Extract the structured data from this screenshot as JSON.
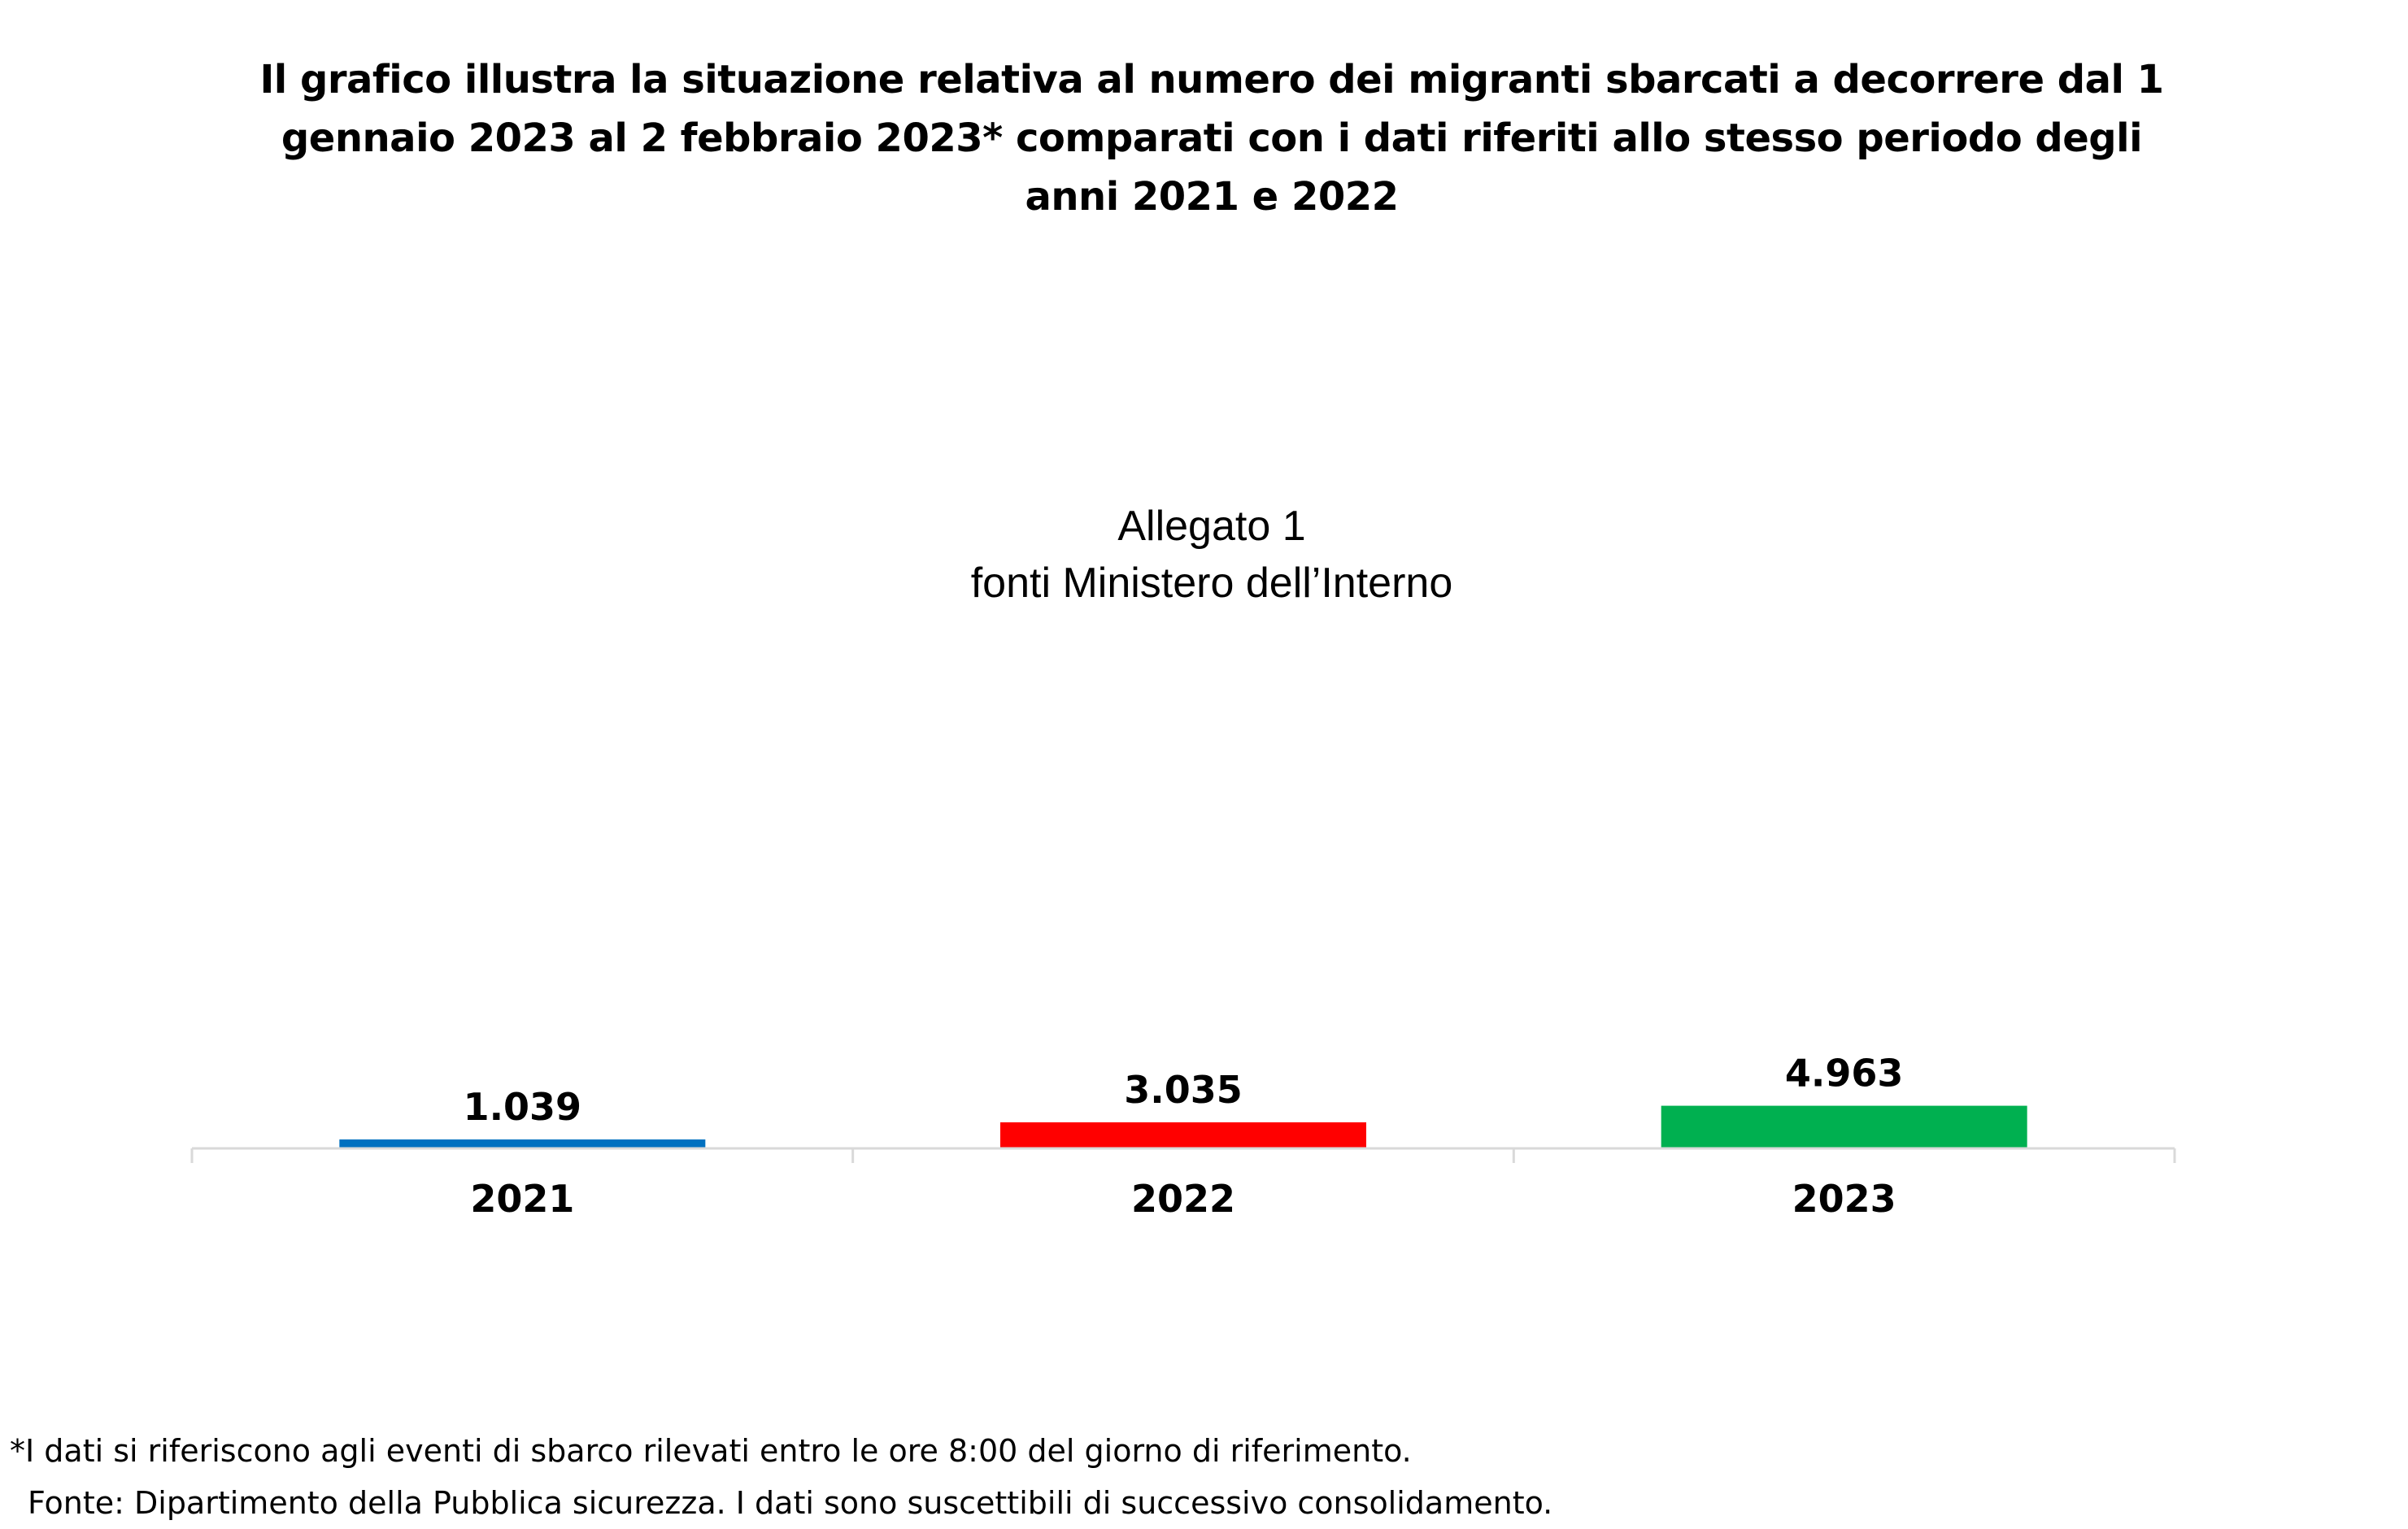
{
  "header": {
    "title_lines": [
      "Il grafico illustra la situazione relativa al numero dei migranti sbarcati a decorrere dal 1",
      "gennaio 2023 al 2 febbraio 2023* comparati con i dati riferiti allo stesso periodo degli",
      "anni 2021 e 2022"
    ],
    "subtitle_lines": [
      "Allegato 1",
      "fonti Ministero dell’Interno"
    ]
  },
  "chart_data": {
    "type": "bar",
    "categories": [
      "2021",
      "2022",
      "2023"
    ],
    "values": [
      1039,
      3035,
      4963
    ],
    "value_labels": [
      "1.039",
      "3.035",
      "4.963"
    ],
    "colors": [
      "#0070C0",
      "#FF0000",
      "#00B050"
    ],
    "ylim": [
      0,
      25000
    ],
    "grid": false,
    "legend": "none"
  },
  "footer": {
    "note": "*I dati si riferiscono agli eventi di sbarco rilevati entro le ore 8:00 del giorno di riferimento.",
    "source": "Fonte: Dipartimento della Pubblica sicurezza. I dati sono suscettibili di successivo consolidamento."
  }
}
